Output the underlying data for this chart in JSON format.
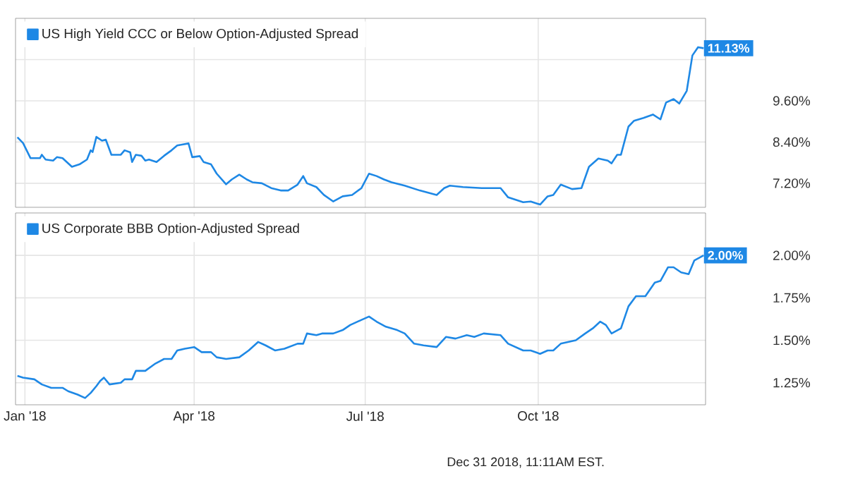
{
  "chart_data": [
    {
      "type": "line",
      "legend": "top left",
      "grid": true,
      "tick_labels": "y",
      "xlim": [
        "2017-12-27",
        "2018-12-29"
      ],
      "xticks": [
        {
          "value": "2018-01-01",
          "label": null
        },
        {
          "value": "2018-04-01",
          "label": null
        },
        {
          "value": "2018-07-01",
          "label": null
        },
        {
          "value": "2018-10-01",
          "label": null
        }
      ],
      "ylim": [
        6.5,
        12.0
      ],
      "yticks": [
        {
          "value": 7.2,
          "label": "7.20%"
        },
        {
          "value": 8.4,
          "label": "8.40%"
        },
        {
          "value": 9.6,
          "label": "9.60%"
        },
        {
          "value": 10.8,
          "label": null
        }
      ],
      "annotations": [
        {
          "text": "11.13%",
          "x": "2018-12-28",
          "y": 11.13
        }
      ],
      "series": [
        {
          "name": "US High Yield CCC or Below Option-Adjusted Spread",
          "color": "#1e88e5",
          "x": [
            "2017-12-28",
            "2017-12-31",
            "2018-01-04",
            "2018-01-09",
            "2018-01-10",
            "2018-01-12",
            "2018-01-16",
            "2018-01-18",
            "2018-01-21",
            "2018-01-26",
            "2018-01-30",
            "2018-02-03",
            "2018-02-05",
            "2018-02-06",
            "2018-02-08",
            "2018-02-11",
            "2018-02-13",
            "2018-02-16",
            "2018-02-21",
            "2018-02-23",
            "2018-02-26",
            "2018-02-27",
            "2018-03-01",
            "2018-03-04",
            "2018-03-06",
            "2018-03-08",
            "2018-03-12",
            "2018-03-16",
            "2018-03-20",
            "2018-03-23",
            "2018-03-29",
            "2018-03-31",
            "2018-04-04",
            "2018-04-06",
            "2018-04-10",
            "2018-04-13",
            "2018-04-18",
            "2018-04-21",
            "2018-04-25",
            "2018-04-29",
            "2018-05-02",
            "2018-05-07",
            "2018-05-12",
            "2018-05-17",
            "2018-05-21",
            "2018-05-26",
            "2018-05-29",
            "2018-05-31",
            "2018-06-05",
            "2018-06-09",
            "2018-06-14",
            "2018-06-19",
            "2018-06-24",
            "2018-06-29",
            "2018-07-03",
            "2018-07-07",
            "2018-07-11",
            "2018-07-15",
            "2018-07-22",
            "2018-07-30",
            "2018-08-08",
            "2018-08-12",
            "2018-08-15",
            "2018-08-22",
            "2018-09-01",
            "2018-09-11",
            "2018-09-15",
            "2018-09-23",
            "2018-09-27",
            "2018-10-02",
            "2018-10-06",
            "2018-10-09",
            "2018-10-13",
            "2018-10-19",
            "2018-10-24",
            "2018-10-28",
            "2018-11-02",
            "2018-11-07",
            "2018-11-09",
            "2018-11-12",
            "2018-11-14",
            "2018-11-18",
            "2018-11-21",
            "2018-11-26",
            "2018-12-01",
            "2018-12-05",
            "2018-12-08",
            "2018-12-12",
            "2018-12-15",
            "2018-12-19",
            "2018-12-22",
            "2018-12-25",
            "2018-12-28"
          ],
          "values": [
            8.54,
            8.37,
            7.93,
            7.93,
            8.03,
            7.89,
            7.86,
            7.96,
            7.93,
            7.68,
            7.75,
            7.89,
            8.16,
            8.11,
            8.55,
            8.44,
            8.47,
            8.03,
            8.03,
            8.16,
            8.1,
            7.82,
            8.03,
            8.0,
            7.86,
            7.89,
            7.82,
            8.0,
            8.16,
            8.3,
            8.36,
            7.96,
            7.99,
            7.82,
            7.75,
            7.48,
            7.17,
            7.31,
            7.45,
            7.31,
            7.23,
            7.2,
            7.06,
            6.99,
            6.99,
            7.16,
            7.41,
            7.2,
            7.09,
            6.86,
            6.67,
            6.82,
            6.86,
            7.06,
            7.48,
            7.41,
            7.31,
            7.23,
            7.13,
            6.99,
            6.86,
            7.06,
            7.13,
            7.09,
            7.06,
            7.06,
            6.79,
            6.65,
            6.67,
            6.58,
            6.82,
            6.86,
            7.16,
            7.03,
            7.06,
            7.68,
            7.92,
            7.86,
            7.78,
            8.03,
            8.03,
            8.85,
            9.02,
            9.1,
            9.2,
            9.06,
            9.55,
            9.65,
            9.52,
            9.89,
            10.92,
            11.16,
            11.13
          ]
        }
      ]
    },
    {
      "type": "line",
      "legend": "top left",
      "grid": true,
      "xlim": [
        "2017-12-27",
        "2018-12-29"
      ],
      "xticks": [
        {
          "value": "2018-01-01",
          "label": "Jan '18"
        },
        {
          "value": "2018-04-01",
          "label": "Apr '18"
        },
        {
          "value": "2018-07-01",
          "label": "Jul '18"
        },
        {
          "value": "2018-10-01",
          "label": "Oct '18"
        }
      ],
      "ylim": [
        1.12,
        2.25
      ],
      "yticks": [
        {
          "value": 1.25,
          "label": "1.25%"
        },
        {
          "value": 1.5,
          "label": "1.50%"
        },
        {
          "value": 1.75,
          "label": "1.75%"
        },
        {
          "value": 2.0,
          "label": "2.00%"
        }
      ],
      "annotations": [
        {
          "text": "2.00%",
          "x": "2018-12-28",
          "y": 2.0
        },
        "Dec 31 2018, 11:11AM EST."
      ],
      "series": [
        {
          "name": "US Corporate BBB Option-Adjusted Spread",
          "color": "#1e88e5",
          "x": [
            "2017-12-28",
            "2017-12-31",
            "2018-01-06",
            "2018-01-10",
            "2018-01-15",
            "2018-01-21",
            "2018-01-24",
            "2018-01-29",
            "2018-02-02",
            "2018-02-05",
            "2018-02-08",
            "2018-02-10",
            "2018-02-12",
            "2018-02-15",
            "2018-02-21",
            "2018-02-23",
            "2018-02-27",
            "2018-03-01",
            "2018-03-06",
            "2018-03-11",
            "2018-03-16",
            "2018-03-20",
            "2018-03-23",
            "2018-03-27",
            "2018-04-01",
            "2018-04-05",
            "2018-04-10",
            "2018-04-13",
            "2018-04-18",
            "2018-04-25",
            "2018-04-30",
            "2018-05-05",
            "2018-05-09",
            "2018-05-14",
            "2018-05-19",
            "2018-05-26",
            "2018-05-29",
            "2018-05-31",
            "2018-06-05",
            "2018-06-08",
            "2018-06-14",
            "2018-06-19",
            "2018-06-23",
            "2018-06-29",
            "2018-07-03",
            "2018-07-07",
            "2018-07-12",
            "2018-07-18",
            "2018-07-22",
            "2018-07-27",
            "2018-08-01",
            "2018-08-08",
            "2018-08-13",
            "2018-08-18",
            "2018-08-24",
            "2018-08-28",
            "2018-09-02",
            "2018-09-11",
            "2018-09-15",
            "2018-09-23",
            "2018-09-27",
            "2018-10-02",
            "2018-10-06",
            "2018-10-09",
            "2018-10-13",
            "2018-10-21",
            "2018-10-26",
            "2018-10-30",
            "2018-11-03",
            "2018-11-06",
            "2018-11-09",
            "2018-11-14",
            "2018-11-18",
            "2018-11-22",
            "2018-11-27",
            "2018-12-02",
            "2018-12-05",
            "2018-12-09",
            "2018-12-12",
            "2018-12-16",
            "2018-12-20",
            "2018-12-23",
            "2018-12-28"
          ],
          "values": [
            1.29,
            1.28,
            1.27,
            1.24,
            1.22,
            1.22,
            1.2,
            1.18,
            1.16,
            1.19,
            1.23,
            1.26,
            1.28,
            1.24,
            1.25,
            1.27,
            1.27,
            1.32,
            1.32,
            1.36,
            1.39,
            1.39,
            1.44,
            1.45,
            1.46,
            1.43,
            1.43,
            1.4,
            1.39,
            1.4,
            1.44,
            1.49,
            1.47,
            1.44,
            1.45,
            1.48,
            1.48,
            1.54,
            1.53,
            1.54,
            1.54,
            1.56,
            1.59,
            1.62,
            1.64,
            1.61,
            1.58,
            1.56,
            1.54,
            1.48,
            1.47,
            1.46,
            1.52,
            1.51,
            1.53,
            1.52,
            1.54,
            1.53,
            1.48,
            1.44,
            1.44,
            1.42,
            1.44,
            1.44,
            1.48,
            1.5,
            1.54,
            1.57,
            1.61,
            1.59,
            1.54,
            1.57,
            1.7,
            1.76,
            1.76,
            1.84,
            1.85,
            1.93,
            1.93,
            1.9,
            1.89,
            1.97,
            2.0
          ]
        }
      ]
    }
  ]
}
